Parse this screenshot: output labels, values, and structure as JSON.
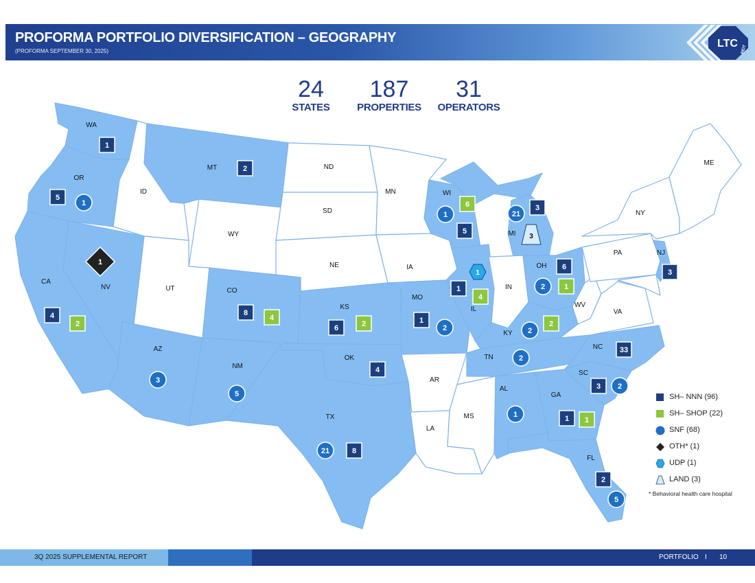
{
  "header": {
    "title": "PROFORMA PORTFOLIO DIVERSIFICATION – GEOGRAPHY",
    "subtitle": "(PROFORMA SEPTEMBER 30, 2025)",
    "logo_text": "LTC",
    "logo_sub": "REIT"
  },
  "stats": [
    {
      "value": "24",
      "label": "STATES"
    },
    {
      "value": "187",
      "label": "PROPERTIES"
    },
    {
      "value": "31",
      "label": "OPERATORS"
    }
  ],
  "colors": {
    "state_fill": "#85bdf3",
    "state_empty": "#ffffff",
    "state_border": "#7fb3e8",
    "nnn": "#1c3f7e",
    "shop": "#8dc63f",
    "snf": "#1f6fc5",
    "oth": "#222222",
    "udp": "#29a8e8",
    "land": "#d6ecf8"
  },
  "state_labels": [
    "WA",
    "OR",
    "CA",
    "NV",
    "ID",
    "MT",
    "WY",
    "UT",
    "AZ",
    "CO",
    "NM",
    "ND",
    "SD",
    "NE",
    "KS",
    "OK",
    "TX",
    "MN",
    "IA",
    "MO",
    "AR",
    "LA",
    "WI",
    "IL",
    "MS",
    "MI",
    "IN",
    "KY",
    "TN",
    "AL",
    "GA",
    "FL",
    "SC",
    "NC",
    "OH",
    "WV",
    "VA",
    "PA",
    "NY",
    "NJ",
    "ME"
  ],
  "markers": [
    {
      "state": "WA",
      "type": "nnn",
      "value": "1"
    },
    {
      "state": "OR",
      "type": "nnn",
      "value": "5"
    },
    {
      "state": "OR",
      "type": "snf",
      "value": "1"
    },
    {
      "state": "MT",
      "type": "nnn",
      "value": "2"
    },
    {
      "state": "NV",
      "type": "oth",
      "value": "1"
    },
    {
      "state": "CA",
      "type": "nnn",
      "value": "4"
    },
    {
      "state": "CA",
      "type": "shop",
      "value": "2"
    },
    {
      "state": "AZ",
      "type": "snf",
      "value": "3"
    },
    {
      "state": "CO",
      "type": "nnn",
      "value": "8"
    },
    {
      "state": "CO",
      "type": "shop",
      "value": "4"
    },
    {
      "state": "NM",
      "type": "snf",
      "value": "5"
    },
    {
      "state": "KS",
      "type": "nnn",
      "value": "6"
    },
    {
      "state": "KS",
      "type": "shop",
      "value": "2"
    },
    {
      "state": "OK",
      "type": "nnn",
      "value": "4"
    },
    {
      "state": "TX",
      "type": "snf",
      "value": "21"
    },
    {
      "state": "TX",
      "type": "nnn",
      "value": "8"
    },
    {
      "state": "MO",
      "type": "nnn",
      "value": "1"
    },
    {
      "state": "MO",
      "type": "snf",
      "value": "2"
    },
    {
      "state": "WI",
      "type": "shop",
      "value": "6"
    },
    {
      "state": "WI",
      "type": "snf",
      "value": "1"
    },
    {
      "state": "WI",
      "type": "nnn",
      "value": "5"
    },
    {
      "state": "IL",
      "type": "udp",
      "value": "1"
    },
    {
      "state": "IL",
      "type": "nnn",
      "value": "1"
    },
    {
      "state": "IL",
      "type": "shop",
      "value": "4"
    },
    {
      "state": "MI",
      "type": "snf",
      "value": "21"
    },
    {
      "state": "MI",
      "type": "nnn",
      "value": "3"
    },
    {
      "state": "MI",
      "type": "land",
      "value": "3"
    },
    {
      "state": "OH",
      "type": "nnn",
      "value": "6"
    },
    {
      "state": "OH",
      "type": "snf",
      "value": "2"
    },
    {
      "state": "OH",
      "type": "shop",
      "value": "1"
    },
    {
      "state": "KY",
      "type": "snf",
      "value": "2"
    },
    {
      "state": "KY",
      "type": "shop",
      "value": "2"
    },
    {
      "state": "TN",
      "type": "snf",
      "value": "2"
    },
    {
      "state": "NC",
      "type": "nnn",
      "value": "33"
    },
    {
      "state": "SC",
      "type": "nnn",
      "value": "3"
    },
    {
      "state": "SC",
      "type": "snf",
      "value": "2"
    },
    {
      "state": "AL",
      "type": "snf",
      "value": "1"
    },
    {
      "state": "GA",
      "type": "nnn",
      "value": "1"
    },
    {
      "state": "GA",
      "type": "shop",
      "value": "1"
    },
    {
      "state": "FL",
      "type": "nnn",
      "value": "2"
    },
    {
      "state": "FL",
      "type": "snf",
      "value": "5"
    },
    {
      "state": "NJ",
      "type": "nnn",
      "value": "3"
    }
  ],
  "legend": [
    {
      "type": "nnn",
      "label": "SH– NNN (96)"
    },
    {
      "type": "shop",
      "label": "SH– SHOP (22)"
    },
    {
      "type": "snf",
      "label": "SNF (68)"
    },
    {
      "type": "oth",
      "label": "OTH* (1)"
    },
    {
      "type": "udp",
      "label": "UDP (1)"
    },
    {
      "type": "land",
      "label": "LAND (3)"
    }
  ],
  "legend_note": "* Behavioral health care hospital",
  "footer": {
    "left": "3Q 2025 SUPPLEMENTAL REPORT",
    "section": "PORTFOLIO",
    "separator": "I",
    "page": "10"
  }
}
